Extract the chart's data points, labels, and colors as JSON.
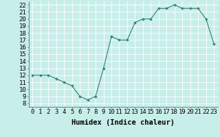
{
  "x": [
    0,
    1,
    2,
    3,
    4,
    5,
    6,
    7,
    8,
    9,
    10,
    11,
    12,
    13,
    14,
    15,
    16,
    17,
    18,
    19,
    20,
    21,
    22,
    23
  ],
  "y": [
    12,
    12,
    12,
    11.5,
    11,
    10.5,
    9,
    8.5,
    9,
    13,
    17.5,
    17,
    17,
    19.5,
    20,
    20,
    21.5,
    21.5,
    22,
    21.5,
    21.5,
    21.5,
    20,
    16.5
  ],
  "line_color": "#2e7d6e",
  "marker_color": "#2e7d6e",
  "bg_color": "#c8eeea",
  "grid_color": "#ffffff",
  "xlabel": "Humidex (Indice chaleur)",
  "yticks": [
    8,
    9,
    10,
    11,
    12,
    13,
    14,
    15,
    16,
    17,
    18,
    19,
    20,
    21,
    22
  ],
  "ylim": [
    7.5,
    22.5
  ],
  "xlim": [
    -0.5,
    23.5
  ],
  "xticks": [
    0,
    1,
    2,
    3,
    4,
    5,
    6,
    7,
    8,
    9,
    10,
    11,
    12,
    13,
    14,
    15,
    16,
    17,
    18,
    19,
    20,
    21,
    22,
    23
  ],
  "xlabel_fontsize": 7.5,
  "tick_fontsize": 6.5
}
